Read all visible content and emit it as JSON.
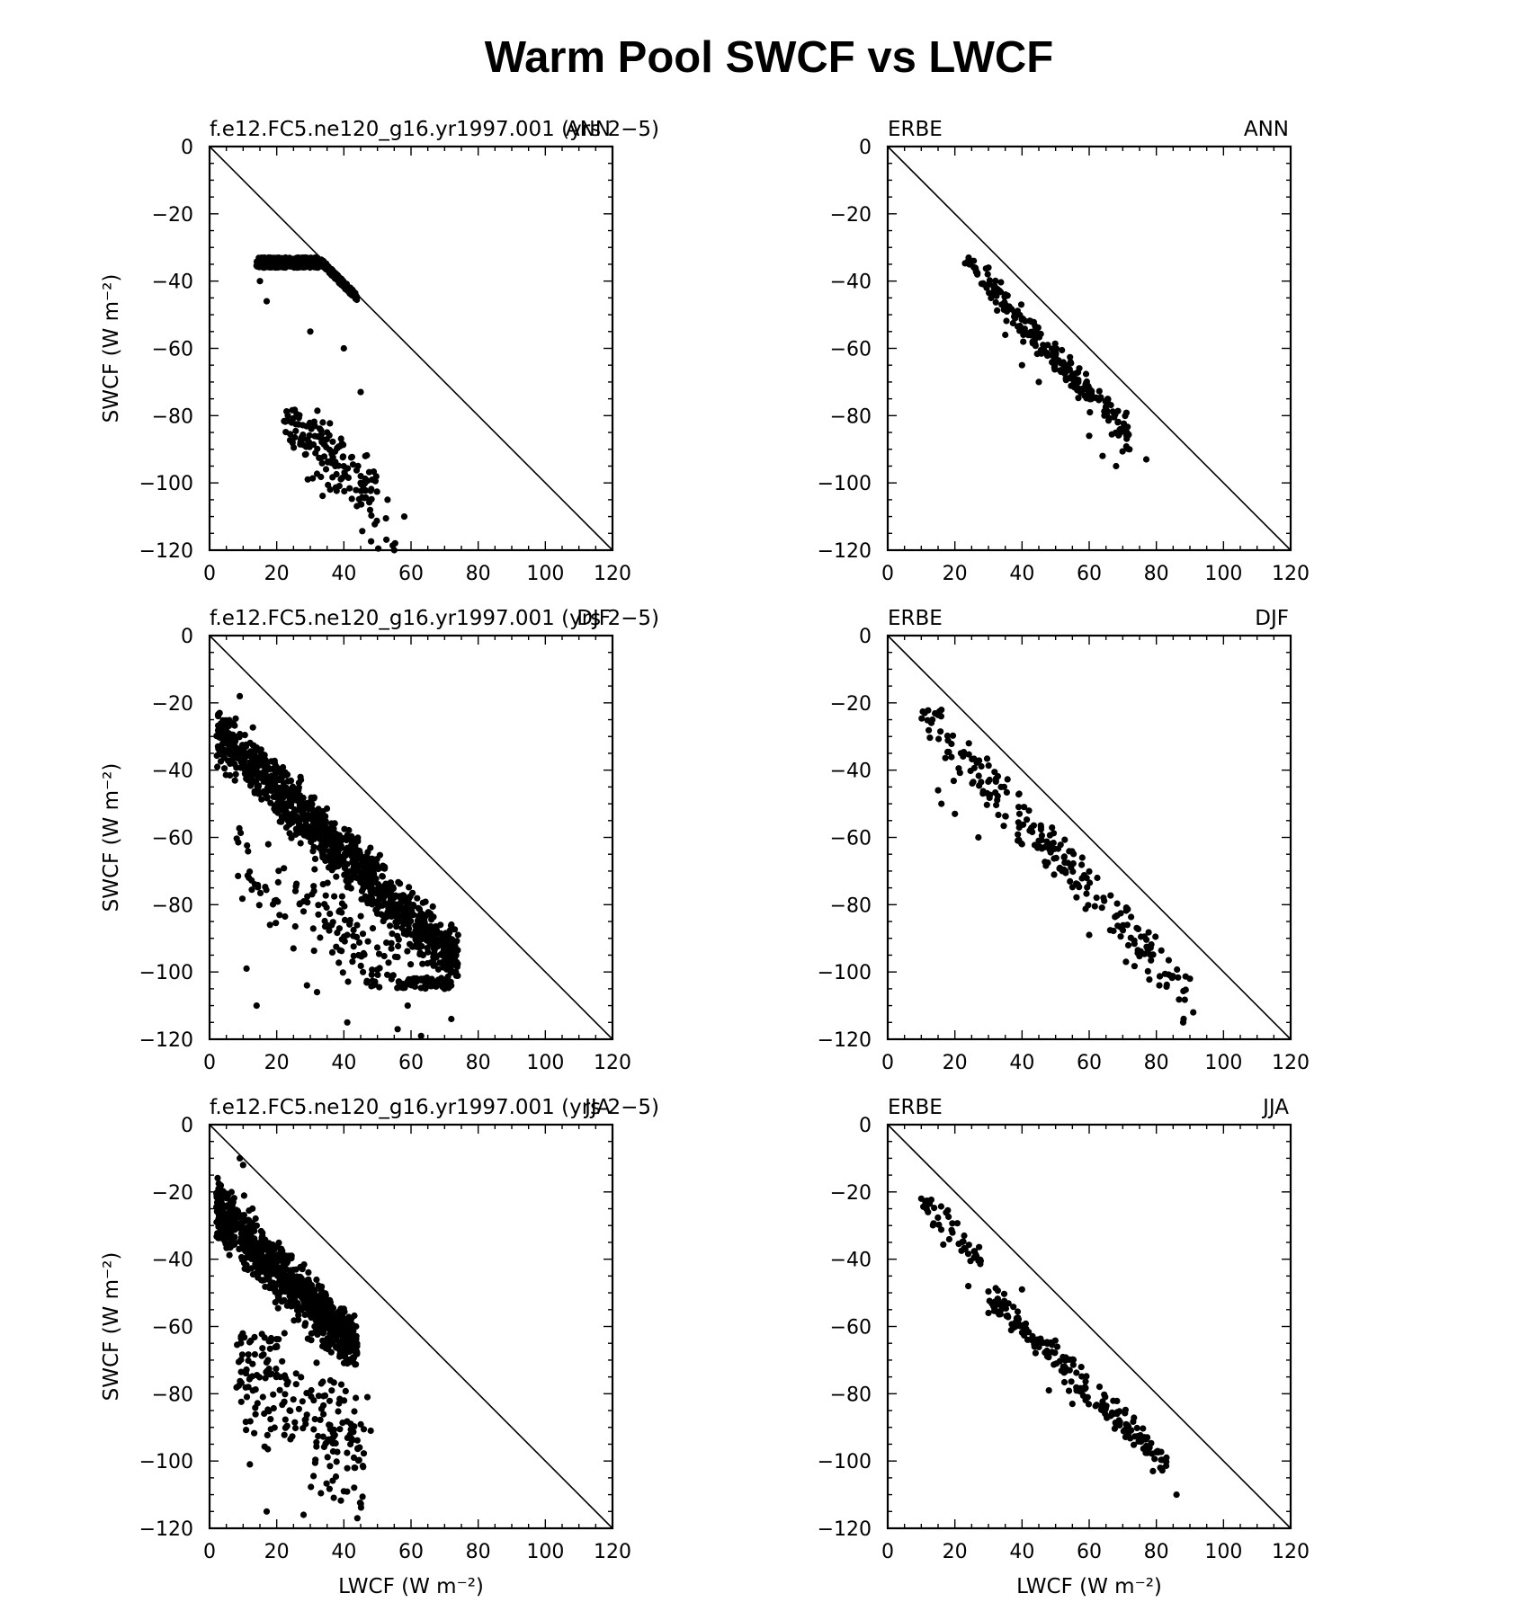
{
  "title": "Warm Pool SWCF vs LWCF",
  "axes_labels": {
    "x": "LWCF (W m⁻²)",
    "y": "SWCF (W m⁻²)"
  },
  "colors": {
    "marker": "#000000",
    "background": "#ffffff"
  },
  "chart_data": [
    {
      "type": "scatter",
      "left_label": "f.e12.FC5.ne120_g16.yr1997.001 (yrs 2−5)",
      "right_label": "ANN",
      "xlabel": "",
      "ylabel": "SWCF (W m⁻²)",
      "xlim": [
        0,
        120
      ],
      "ylim": [
        -120,
        0
      ],
      "xticks": [
        0,
        20,
        40,
        60,
        80,
        100,
        120
      ],
      "yticks": [
        0,
        -20,
        -40,
        -60,
        -80,
        -100,
        -120
      ],
      "reference_line": [
        [
          0,
          0
        ],
        [
          120,
          -120
        ]
      ],
      "clusters": [
        {
          "n": 550,
          "x": [
            14,
            44
          ],
          "base": 17,
          "slope": -1.05,
          "spread": 5,
          "ylo": -74,
          "yhi": -33
        },
        {
          "n": 140,
          "x": [
            22,
            50
          ],
          "base": -62,
          "slope": -0.85,
          "spread": 7,
          "ylo": -110,
          "yhi": -78
        },
        {
          "n": 16,
          "x": [
            35,
            59
          ],
          "base": -63,
          "slope": -1.0,
          "spread": 7,
          "ylo": -120,
          "yhi": -100
        }
      ],
      "series": [
        {
          "points": [
            [
              15,
              -40
            ],
            [
              17,
              -46
            ],
            [
              25,
              -34
            ],
            [
              30,
              -55
            ],
            [
              40,
              -60
            ],
            [
              45,
              -73
            ],
            [
              35,
              -85
            ],
            [
              45,
              -100
            ],
            [
              53,
              -105
            ],
            [
              58,
              -110
            ],
            [
              55,
              -120
            ]
          ]
        }
      ]
    },
    {
      "type": "scatter",
      "left_label": "ERBE",
      "right_label": "ANN",
      "xlabel": "",
      "ylabel": "",
      "xlim": [
        0,
        120
      ],
      "ylim": [
        -120,
        0
      ],
      "xticks": [
        0,
        20,
        40,
        60,
        80,
        100,
        120
      ],
      "yticks": [
        0,
        -20,
        -40,
        -60,
        -80,
        -100,
        -120
      ],
      "reference_line": [
        [
          0,
          0
        ],
        [
          120,
          -120
        ]
      ],
      "clusters": [
        {
          "n": 240,
          "x": [
            23,
            72
          ],
          "base": -9,
          "slope": -1.08,
          "spread": 3.5,
          "ylo": -95,
          "yhi": -33
        }
      ],
      "series": [
        {
          "points": [
            [
              24,
              -34
            ],
            [
              26,
              -36
            ],
            [
              30,
              -36
            ],
            [
              35,
              -56
            ],
            [
              40,
              -65
            ],
            [
              45,
              -70
            ],
            [
              60,
              -86
            ],
            [
              64,
              -92
            ],
            [
              68,
              -95
            ],
            [
              72,
              -90
            ],
            [
              77,
              -93
            ]
          ]
        }
      ]
    },
    {
      "type": "scatter",
      "left_label": "f.e12.FC5.ne120_g16.yr1997.001 (yrs 2−5)",
      "right_label": "DJF",
      "xlabel": "",
      "ylabel": "SWCF (W m⁻²)",
      "xlim": [
        0,
        120
      ],
      "ylim": [
        -120,
        0
      ],
      "xticks": [
        0,
        20,
        40,
        60,
        80,
        100,
        120
      ],
      "yticks": [
        0,
        -20,
        -40,
        -60,
        -80,
        -100,
        -120
      ],
      "reference_line": [
        [
          0,
          0
        ],
        [
          120,
          -120
        ]
      ],
      "clusters": [
        {
          "n": 1100,
          "x": [
            2,
            74
          ],
          "base": -27,
          "slope": -0.95,
          "spread": 6,
          "ylo": -102,
          "yhi": -18
        },
        {
          "n": 160,
          "x": [
            30,
            72
          ],
          "base": -50,
          "slope": -0.95,
          "spread": 9,
          "ylo": -105,
          "yhi": -60
        },
        {
          "n": 40,
          "x": [
            8,
            30
          ],
          "base": -55,
          "slope": -1.1,
          "spread": 9,
          "ylo": -92,
          "yhi": -50
        }
      ],
      "series": [
        {
          "points": [
            [
              3,
              -23
            ],
            [
              9,
              -18
            ],
            [
              11,
              -99
            ],
            [
              14,
              -110
            ],
            [
              18,
              -86
            ],
            [
              25,
              -93
            ],
            [
              28,
              -82
            ],
            [
              29,
              -104
            ],
            [
              32,
              -106
            ],
            [
              41,
              -115
            ],
            [
              56,
              -117
            ],
            [
              59,
              -110
            ],
            [
              63,
              -119
            ],
            [
              72,
              -114
            ],
            [
              74,
              -89
            ],
            [
              70,
              -105
            ]
          ]
        }
      ]
    },
    {
      "type": "scatter",
      "left_label": "ERBE",
      "right_label": "DJF",
      "xlabel": "",
      "ylabel": "",
      "xlim": [
        0,
        120
      ],
      "ylim": [
        -120,
        0
      ],
      "xticks": [
        0,
        20,
        40,
        60,
        80,
        100,
        120
      ],
      "yticks": [
        0,
        -20,
        -40,
        -60,
        -80,
        -100,
        -120
      ],
      "reference_line": [
        [
          0,
          0
        ],
        [
          120,
          -120
        ]
      ],
      "clusters": [
        {
          "n": 220,
          "x": [
            10,
            90
          ],
          "base": -12,
          "slope": -1.07,
          "spread": 6,
          "ylo": -115,
          "yhi": -22
        }
      ],
      "series": [
        {
          "points": [
            [
              11,
              -23
            ],
            [
              15,
              -46
            ],
            [
              16,
              -50
            ],
            [
              20,
              -53
            ],
            [
              27,
              -60
            ],
            [
              40,
              -62
            ],
            [
              45,
              -61
            ],
            [
              52,
              -70
            ],
            [
              88,
              -115
            ],
            [
              91,
              -112
            ],
            [
              90,
              -102
            ],
            [
              60,
              -89
            ]
          ]
        }
      ]
    },
    {
      "type": "scatter",
      "left_label": "f.e12.FC5.ne120_g16.yr1997.001 (yrs 2−5)",
      "right_label": "JJA",
      "xlabel": "LWCF (W m⁻²)",
      "ylabel": "SWCF (W m⁻²)",
      "xlim": [
        0,
        120
      ],
      "ylim": [
        -120,
        0
      ],
      "xticks": [
        0,
        20,
        40,
        60,
        80,
        100,
        120
      ],
      "yticks": [
        0,
        -20,
        -40,
        -60,
        -80,
        -100,
        -120
      ],
      "reference_line": [
        [
          0,
          0
        ],
        [
          120,
          -120
        ]
      ],
      "clusters": [
        {
          "n": 900,
          "x": [
            2,
            44
          ],
          "base": -23,
          "slope": -1.0,
          "spread": 6,
          "ylo": -72,
          "yhi": -10
        },
        {
          "n": 210,
          "x": [
            8,
            46
          ],
          "base": -65,
          "slope": -0.75,
          "spread": 14,
          "ylo": -116,
          "yhi": -62
        }
      ],
      "series": [
        {
          "points": [
            [
              9,
              -10
            ],
            [
              10,
              -12
            ],
            [
              4,
              -30
            ],
            [
              47,
              -81
            ],
            [
              48,
              -91
            ],
            [
              44,
              -117
            ],
            [
              28,
              -116
            ],
            [
              17,
              -115
            ],
            [
              12,
              -101
            ],
            [
              43,
              -99
            ],
            [
              40,
              -109
            ]
          ]
        }
      ]
    },
    {
      "type": "scatter",
      "left_label": "ERBE",
      "right_label": "JJA",
      "xlabel": "LWCF (W m⁻²)",
      "ylabel": "",
      "xlim": [
        0,
        120
      ],
      "ylim": [
        -120,
        0
      ],
      "xticks": [
        0,
        20,
        40,
        60,
        80,
        100,
        120
      ],
      "yticks": [
        0,
        -20,
        -40,
        -60,
        -80,
        -100,
        -120
      ],
      "reference_line": [
        [
          0,
          0
        ],
        [
          120,
          -120
        ]
      ],
      "clusters": [
        {
          "n": 50,
          "x": [
            10,
            28
          ],
          "base": -10,
          "slope": -1.15,
          "spread": 3.5,
          "ylo": -49,
          "yhi": -22
        },
        {
          "n": 200,
          "x": [
            30,
            83
          ],
          "base": -22,
          "slope": -0.95,
          "spread": 3.5,
          "ylo": -103,
          "yhi": -48
        }
      ],
      "series": [
        {
          "points": [
            [
              10,
              -22
            ],
            [
              12,
              -26
            ],
            [
              24,
              -48
            ],
            [
              30,
              -56
            ],
            [
              40,
              -49
            ],
            [
              48,
              -79
            ],
            [
              55,
              -83
            ],
            [
              79,
              -103
            ],
            [
              83,
              -99
            ],
            [
              86,
              -110
            ]
          ]
        }
      ]
    }
  ]
}
